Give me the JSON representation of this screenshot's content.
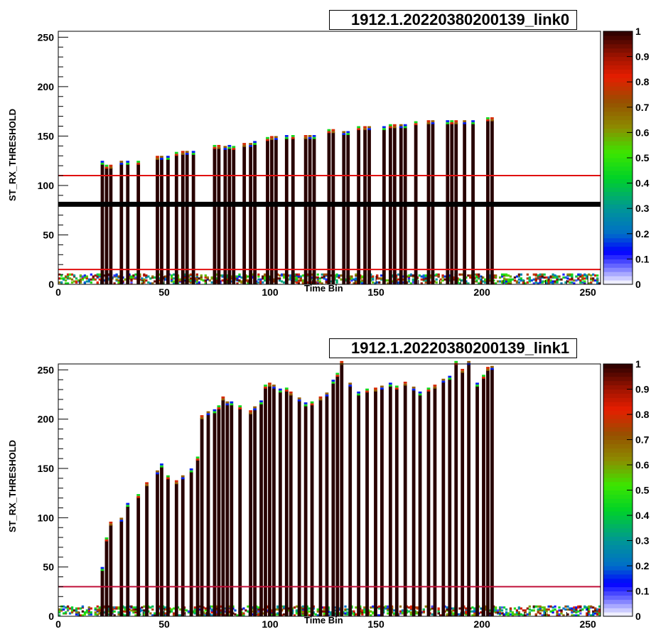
{
  "chart_data": [
    {
      "type": "heatmap",
      "title": "1912.1.20220380200139_link0",
      "xlabel": "Time Bin",
      "ylabel": "ST_RX_THRESHOLD",
      "xlim": [
        0,
        256
      ],
      "ylim": [
        0,
        256
      ],
      "x_ticks": [
        0,
        50,
        100,
        150,
        200,
        250
      ],
      "y_ticks": [
        0,
        50,
        100,
        150,
        200,
        250
      ],
      "z_ticks": [
        "0",
        "0.1",
        "0.2",
        "0.3",
        "0.4",
        "0.5",
        "0.6",
        "0.7",
        "0.8",
        "0.9",
        "1"
      ],
      "zlim": [
        0,
        1
      ],
      "horizontal_lines": [
        {
          "y": 110,
          "color": "#e01010"
        },
        {
          "y": 15,
          "color": "#e01010"
        },
        {
          "y": 81,
          "color": "#000000",
          "thick": true
        }
      ],
      "noise_range": [
        0,
        255
      ],
      "noise_max_y": 10,
      "columns": [
        {
          "x": 20,
          "top": 122
        },
        {
          "x": 22,
          "top": 118
        },
        {
          "x": 24,
          "top": 118
        },
        {
          "x": 29,
          "top": 122
        },
        {
          "x": 32,
          "top": 122
        },
        {
          "x": 37,
          "top": 122
        },
        {
          "x": 46,
          "top": 127
        },
        {
          "x": 48,
          "top": 127
        },
        {
          "x": 51,
          "top": 127
        },
        {
          "x": 55,
          "top": 131
        },
        {
          "x": 58,
          "top": 132
        },
        {
          "x": 60,
          "top": 132
        },
        {
          "x": 63,
          "top": 132
        },
        {
          "x": 73,
          "top": 138
        },
        {
          "x": 75,
          "top": 138
        },
        {
          "x": 78,
          "top": 137
        },
        {
          "x": 80,
          "top": 138
        },
        {
          "x": 82,
          "top": 137
        },
        {
          "x": 87,
          "top": 140
        },
        {
          "x": 90,
          "top": 140
        },
        {
          "x": 92,
          "top": 142
        },
        {
          "x": 98,
          "top": 146
        },
        {
          "x": 100,
          "top": 147
        },
        {
          "x": 102,
          "top": 147
        },
        {
          "x": 107,
          "top": 148
        },
        {
          "x": 110,
          "top": 148
        },
        {
          "x": 116,
          "top": 148
        },
        {
          "x": 118,
          "top": 148
        },
        {
          "x": 120,
          "top": 148
        },
        {
          "x": 127,
          "top": 154
        },
        {
          "x": 129,
          "top": 154
        },
        {
          "x": 134,
          "top": 152
        },
        {
          "x": 136,
          "top": 152
        },
        {
          "x": 141,
          "top": 157
        },
        {
          "x": 144,
          "top": 157
        },
        {
          "x": 146,
          "top": 157
        },
        {
          "x": 153,
          "top": 157
        },
        {
          "x": 156,
          "top": 159
        },
        {
          "x": 158,
          "top": 159
        },
        {
          "x": 161,
          "top": 159
        },
        {
          "x": 163,
          "top": 159
        },
        {
          "x": 168,
          "top": 162
        },
        {
          "x": 174,
          "top": 163
        },
        {
          "x": 176,
          "top": 163
        },
        {
          "x": 183,
          "top": 163
        },
        {
          "x": 185,
          "top": 163
        },
        {
          "x": 187,
          "top": 163
        },
        {
          "x": 191,
          "top": 163
        },
        {
          "x": 195,
          "top": 163
        },
        {
          "x": 202,
          "top": 166
        },
        {
          "x": 204,
          "top": 166
        }
      ]
    },
    {
      "type": "heatmap",
      "title": "1912.1.20220380200139_link1",
      "xlabel": "Time Bin",
      "ylabel": "ST_RX_THRESHOLD",
      "xlim": [
        0,
        256
      ],
      "ylim": [
        0,
        256
      ],
      "x_ticks": [
        0,
        50,
        100,
        150,
        200,
        250
      ],
      "y_ticks": [
        0,
        50,
        100,
        150,
        200,
        250
      ],
      "z_ticks": [
        "0",
        "0.1",
        "0.2",
        "0.3",
        "0.4",
        "0.5",
        "0.6",
        "0.7",
        "0.8",
        "0.9",
        "1"
      ],
      "zlim": [
        0,
        1
      ],
      "horizontal_lines": [
        {
          "y": 30,
          "color": "#c0103a",
          "thick": false
        }
      ],
      "noise_range": [
        0,
        255
      ],
      "noise_max_y": 10,
      "columns": [
        {
          "x": 20,
          "top": 47
        },
        {
          "x": 22,
          "top": 77
        },
        {
          "x": 24,
          "top": 93
        },
        {
          "x": 29,
          "top": 97
        },
        {
          "x": 32,
          "top": 112
        },
        {
          "x": 37,
          "top": 121
        },
        {
          "x": 41,
          "top": 133
        },
        {
          "x": 46,
          "top": 145
        },
        {
          "x": 48,
          "top": 152
        },
        {
          "x": 51,
          "top": 140
        },
        {
          "x": 55,
          "top": 135
        },
        {
          "x": 58,
          "top": 140
        },
        {
          "x": 62,
          "top": 147
        },
        {
          "x": 65,
          "top": 159
        },
        {
          "x": 67,
          "top": 201
        },
        {
          "x": 70,
          "top": 205
        },
        {
          "x": 73,
          "top": 207
        },
        {
          "x": 75,
          "top": 211
        },
        {
          "x": 77,
          "top": 220
        },
        {
          "x": 79,
          "top": 215
        },
        {
          "x": 81,
          "top": 215
        },
        {
          "x": 85,
          "top": 211
        },
        {
          "x": 90,
          "top": 206
        },
        {
          "x": 92,
          "top": 210
        },
        {
          "x": 95,
          "top": 216
        },
        {
          "x": 97,
          "top": 232
        },
        {
          "x": 99,
          "top": 234
        },
        {
          "x": 101,
          "top": 232
        },
        {
          "x": 104,
          "top": 228
        },
        {
          "x": 107,
          "top": 229
        },
        {
          "x": 109,
          "top": 225
        },
        {
          "x": 113,
          "top": 219
        },
        {
          "x": 116,
          "top": 214
        },
        {
          "x": 119,
          "top": 215
        },
        {
          "x": 123,
          "top": 220
        },
        {
          "x": 126,
          "top": 224
        },
        {
          "x": 129,
          "top": 237
        },
        {
          "x": 131,
          "top": 244
        },
        {
          "x": 133,
          "top": 256
        },
        {
          "x": 137,
          "top": 234
        },
        {
          "x": 141,
          "top": 225
        },
        {
          "x": 145,
          "top": 228
        },
        {
          "x": 149,
          "top": 229
        },
        {
          "x": 152,
          "top": 231
        },
        {
          "x": 156,
          "top": 234
        },
        {
          "x": 159,
          "top": 231
        },
        {
          "x": 163,
          "top": 235
        },
        {
          "x": 167,
          "top": 230
        },
        {
          "x": 170,
          "top": 225
        },
        {
          "x": 174,
          "top": 229
        },
        {
          "x": 177,
          "top": 232
        },
        {
          "x": 181,
          "top": 238
        },
        {
          "x": 184,
          "top": 241
        },
        {
          "x": 187,
          "top": 256
        },
        {
          "x": 190,
          "top": 248
        },
        {
          "x": 193,
          "top": 256
        },
        {
          "x": 197,
          "top": 234
        },
        {
          "x": 200,
          "top": 242
        },
        {
          "x": 202,
          "top": 250
        },
        {
          "x": 204,
          "top": 251
        }
      ]
    }
  ]
}
